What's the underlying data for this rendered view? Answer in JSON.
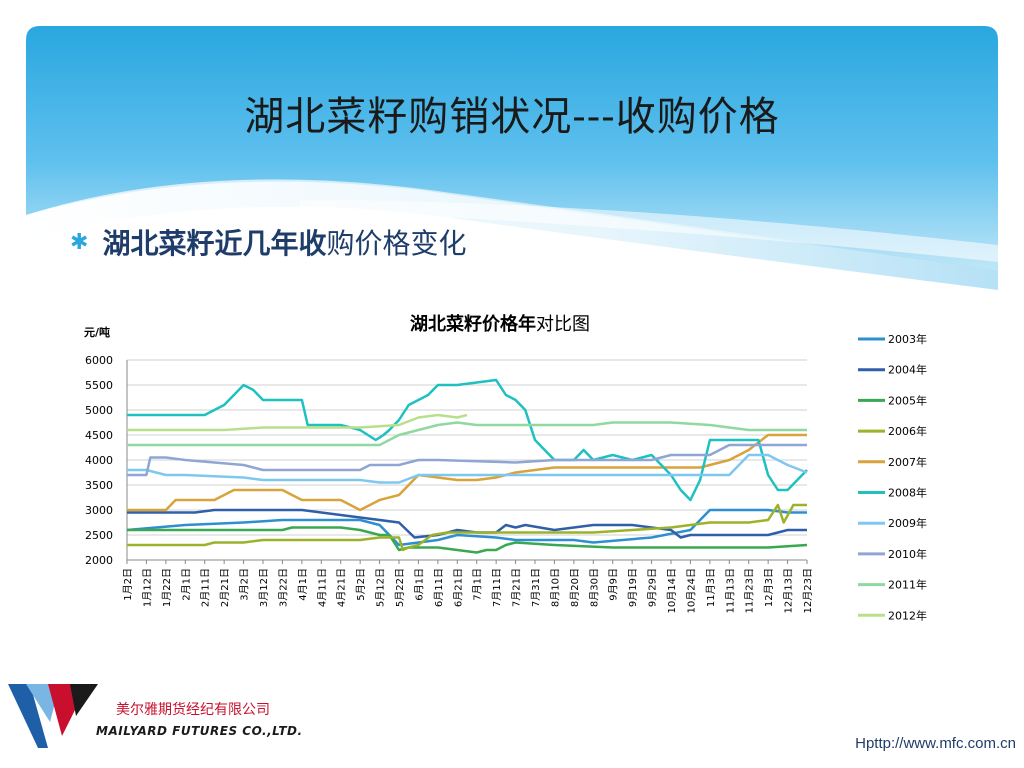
{
  "slide": {
    "title": "湖北菜籽购销状况---收购价格",
    "bullet_bold": "湖北菜籽近几年收",
    "bullet_rest": "购价格变化",
    "company_cn": "美尔雅期货经纪有限公司",
    "company_en": "MAILYARD FUTURES  CO.,LTD.",
    "website": "Hpttp://www.mfc.com.cn",
    "colors": {
      "banner": "#2aa7df",
      "banner_light": "#bfe6f8"
    }
  },
  "chart_data": {
    "type": "line",
    "title_bold": "湖北菜籽价格年",
    "title_rest": "对比图",
    "ylabel": "元/吨",
    "ylim": [
      2000,
      6000
    ],
    "yticks": [
      2000,
      2500,
      3000,
      3500,
      4000,
      4500,
      5000,
      5500,
      6000
    ],
    "grid": true,
    "legend": "right",
    "xticks": [
      "1月2日",
      "1月12日",
      "1月22日",
      "2月1日",
      "2月11日",
      "2月21日",
      "3月2日",
      "3月12日",
      "3月22日",
      "4月1日",
      "4月11日",
      "4月21日",
      "5月2日",
      "5月12日",
      "5月22日",
      "6月1日",
      "6月11日",
      "6月21日",
      "7月1日",
      "7月11日",
      "7月21日",
      "7月31日",
      "8月10日",
      "8月20日",
      "8月30日",
      "9月9日",
      "9月19日",
      "9月29日",
      "10月14日",
      "10月24日",
      "11月3日",
      "11月13日",
      "11月23日",
      "12月3日",
      "12月13日",
      "12月23日"
    ],
    "x_range": [
      0,
      35
    ],
    "series": [
      {
        "name": "2003年",
        "color": "#2e8fd0",
        "points": [
          [
            0,
            2600
          ],
          [
            1.5,
            2650
          ],
          [
            3,
            2700
          ],
          [
            6,
            2750
          ],
          [
            8,
            2800
          ],
          [
            10,
            2800
          ],
          [
            12,
            2800
          ],
          [
            13,
            2700
          ],
          [
            14,
            2300
          ],
          [
            16,
            2400
          ],
          [
            17,
            2500
          ],
          [
            19,
            2450
          ],
          [
            20,
            2400
          ],
          [
            23,
            2400
          ],
          [
            24,
            2350
          ],
          [
            27,
            2450
          ],
          [
            29,
            2600
          ],
          [
            30,
            3000
          ],
          [
            33,
            3000
          ],
          [
            34,
            2950
          ],
          [
            35,
            2950
          ]
        ]
      },
      {
        "name": "2004年",
        "color": "#2f5fa8",
        "points": [
          [
            0,
            2950
          ],
          [
            3.5,
            2950
          ],
          [
            4.5,
            3000
          ],
          [
            9,
            3000
          ],
          [
            10,
            2950
          ],
          [
            13,
            2800
          ],
          [
            14,
            2750
          ],
          [
            14.8,
            2450
          ],
          [
            16,
            2500
          ],
          [
            17,
            2600
          ],
          [
            18,
            2550
          ],
          [
            19,
            2550
          ],
          [
            19.5,
            2700
          ],
          [
            20,
            2650
          ],
          [
            20.5,
            2700
          ],
          [
            22,
            2600
          ],
          [
            23,
            2650
          ],
          [
            24,
            2700
          ],
          [
            26,
            2700
          ],
          [
            27,
            2650
          ],
          [
            28,
            2600
          ],
          [
            28.5,
            2450
          ],
          [
            29,
            2500
          ],
          [
            33,
            2500
          ],
          [
            34,
            2600
          ],
          [
            35,
            2600
          ]
        ]
      },
      {
        "name": "2005年",
        "color": "#3aa850",
        "points": [
          [
            0,
            2600
          ],
          [
            4,
            2600
          ],
          [
            8,
            2600
          ],
          [
            8.5,
            2650
          ],
          [
            11,
            2650
          ],
          [
            12,
            2600
          ],
          [
            13,
            2500
          ],
          [
            13.5,
            2500
          ],
          [
            14,
            2200
          ],
          [
            14.5,
            2250
          ],
          [
            16,
            2250
          ],
          [
            17,
            2200
          ],
          [
            18,
            2150
          ],
          [
            18.5,
            2200
          ],
          [
            19,
            2200
          ],
          [
            19.5,
            2300
          ],
          [
            20,
            2350
          ],
          [
            22,
            2300
          ],
          [
            25,
            2250
          ],
          [
            28,
            2250
          ],
          [
            30,
            2250
          ],
          [
            33,
            2250
          ],
          [
            35,
            2300
          ]
        ]
      },
      {
        "name": "2006年",
        "color": "#9bb22a",
        "points": [
          [
            0,
            2300
          ],
          [
            4,
            2300
          ],
          [
            4.5,
            2350
          ],
          [
            6,
            2350
          ],
          [
            7,
            2400
          ],
          [
            12,
            2400
          ],
          [
            13,
            2450
          ],
          [
            14,
            2450
          ],
          [
            14.2,
            2200
          ],
          [
            14.5,
            2250
          ],
          [
            15,
            2300
          ],
          [
            15.7,
            2500
          ],
          [
            16.5,
            2550
          ],
          [
            18,
            2550
          ],
          [
            20,
            2550
          ],
          [
            22,
            2550
          ],
          [
            24,
            2550
          ],
          [
            26,
            2600
          ],
          [
            28,
            2650
          ],
          [
            29,
            2700
          ],
          [
            30,
            2750
          ],
          [
            32,
            2750
          ],
          [
            33,
            2800
          ],
          [
            33.5,
            3100
          ],
          [
            33.8,
            2750
          ],
          [
            34.3,
            3100
          ],
          [
            35,
            3100
          ]
        ]
      },
      {
        "name": "2007年",
        "color": "#d8a33a",
        "points": [
          [
            0,
            3000
          ],
          [
            2,
            3000
          ],
          [
            2.5,
            3200
          ],
          [
            4.5,
            3200
          ],
          [
            5.5,
            3400
          ],
          [
            8,
            3400
          ],
          [
            8.5,
            3300
          ],
          [
            9,
            3200
          ],
          [
            11,
            3200
          ],
          [
            12,
            3000
          ],
          [
            12.5,
            3100
          ],
          [
            13,
            3200
          ],
          [
            14,
            3300
          ],
          [
            15,
            3700
          ],
          [
            17,
            3600
          ],
          [
            18,
            3600
          ],
          [
            19,
            3650
          ],
          [
            20,
            3750
          ],
          [
            21,
            3800
          ],
          [
            22,
            3850
          ],
          [
            23,
            3850
          ],
          [
            26,
            3850
          ],
          [
            28,
            3850
          ],
          [
            29.5,
            3850
          ],
          [
            30,
            3900
          ],
          [
            31,
            4000
          ],
          [
            32,
            4200
          ],
          [
            33,
            4500
          ],
          [
            34,
            4500
          ],
          [
            35,
            4500
          ]
        ]
      },
      {
        "name": "2008年",
        "color": "#1ec0c0",
        "points": [
          [
            0,
            4900
          ],
          [
            3,
            4900
          ],
          [
            4,
            4900
          ],
          [
            4.5,
            5000
          ],
          [
            5,
            5100
          ],
          [
            5.5,
            5300
          ],
          [
            6,
            5500
          ],
          [
            6.5,
            5400
          ],
          [
            7,
            5200
          ],
          [
            9,
            5200
          ],
          [
            9.3,
            4700
          ],
          [
            11,
            4700
          ],
          [
            12,
            4600
          ],
          [
            12.8,
            4400
          ],
          [
            13.2,
            4500
          ],
          [
            13.5,
            4600
          ],
          [
            14,
            4800
          ],
          [
            14.5,
            5100
          ],
          [
            15,
            5200
          ],
          [
            15.5,
            5300
          ],
          [
            16,
            5500
          ],
          [
            17,
            5500
          ],
          [
            18,
            5550
          ],
          [
            19,
            5600
          ],
          [
            19.5,
            5300
          ],
          [
            20,
            5200
          ],
          [
            20.5,
            5000
          ],
          [
            21,
            4400
          ],
          [
            22,
            4000
          ],
          [
            23,
            4000
          ],
          [
            23.5,
            4200
          ],
          [
            24,
            4000
          ],
          [
            25,
            4100
          ],
          [
            26,
            4000
          ],
          [
            27,
            4100
          ],
          [
            28,
            3700
          ],
          [
            28.5,
            3400
          ],
          [
            29,
            3200
          ],
          [
            29.5,
            3600
          ],
          [
            30,
            4400
          ],
          [
            32,
            4400
          ],
          [
            32.5,
            4400
          ],
          [
            33,
            3700
          ],
          [
            33.5,
            3400
          ],
          [
            34,
            3400
          ],
          [
            35,
            3800
          ]
        ]
      },
      {
        "name": "2009年",
        "color": "#7ec8f0",
        "points": [
          [
            0,
            3800
          ],
          [
            1,
            3800
          ],
          [
            2,
            3700
          ],
          [
            3,
            3700
          ],
          [
            6,
            3650
          ],
          [
            7,
            3600
          ],
          [
            12,
            3600
          ],
          [
            13,
            3550
          ],
          [
            14,
            3550
          ],
          [
            15,
            3700
          ],
          [
            16,
            3700
          ],
          [
            19,
            3700
          ],
          [
            20,
            3700
          ],
          [
            22,
            3700
          ],
          [
            25,
            3700
          ],
          [
            27,
            3700
          ],
          [
            28,
            3700
          ],
          [
            29,
            3700
          ],
          [
            30,
            3700
          ],
          [
            31,
            3700
          ],
          [
            32,
            4100
          ],
          [
            33,
            4100
          ],
          [
            34,
            3900
          ],
          [
            35,
            3750
          ]
        ]
      },
      {
        "name": "2010年",
        "color": "#8fa6d4",
        "points": [
          [
            0,
            3700
          ],
          [
            1,
            3700
          ],
          [
            1.2,
            4050
          ],
          [
            2,
            4050
          ],
          [
            3,
            4000
          ],
          [
            6,
            3900
          ],
          [
            7,
            3800
          ],
          [
            12,
            3800
          ],
          [
            12.5,
            3900
          ],
          [
            14,
            3900
          ],
          [
            15,
            4000
          ],
          [
            16,
            4000
          ],
          [
            20,
            3950
          ],
          [
            22,
            4000
          ],
          [
            25,
            4000
          ],
          [
            27,
            4000
          ],
          [
            28,
            4100
          ],
          [
            29,
            4100
          ],
          [
            30,
            4100
          ],
          [
            31,
            4300
          ],
          [
            34,
            4300
          ],
          [
            35,
            4300
          ]
        ]
      },
      {
        "name": "2011年",
        "color": "#8fd8a0",
        "points": [
          [
            0,
            4300
          ],
          [
            6,
            4300
          ],
          [
            13,
            4300
          ],
          [
            14,
            4500
          ],
          [
            15,
            4600
          ],
          [
            16,
            4700
          ],
          [
            17,
            4750
          ],
          [
            18,
            4700
          ],
          [
            20,
            4700
          ],
          [
            21,
            4700
          ],
          [
            22,
            4700
          ],
          [
            24,
            4700
          ],
          [
            25,
            4750
          ],
          [
            28,
            4750
          ],
          [
            30,
            4700
          ],
          [
            32,
            4600
          ],
          [
            35,
            4600
          ]
        ]
      },
      {
        "name": "2012年",
        "color": "#b8e08a",
        "points": [
          [
            0,
            4600
          ],
          [
            5,
            4600
          ],
          [
            7,
            4650
          ],
          [
            12,
            4650
          ],
          [
            14,
            4700
          ],
          [
            15,
            4850
          ],
          [
            16,
            4900
          ],
          [
            17,
            4850
          ],
          [
            17.5,
            4900
          ]
        ]
      }
    ]
  }
}
